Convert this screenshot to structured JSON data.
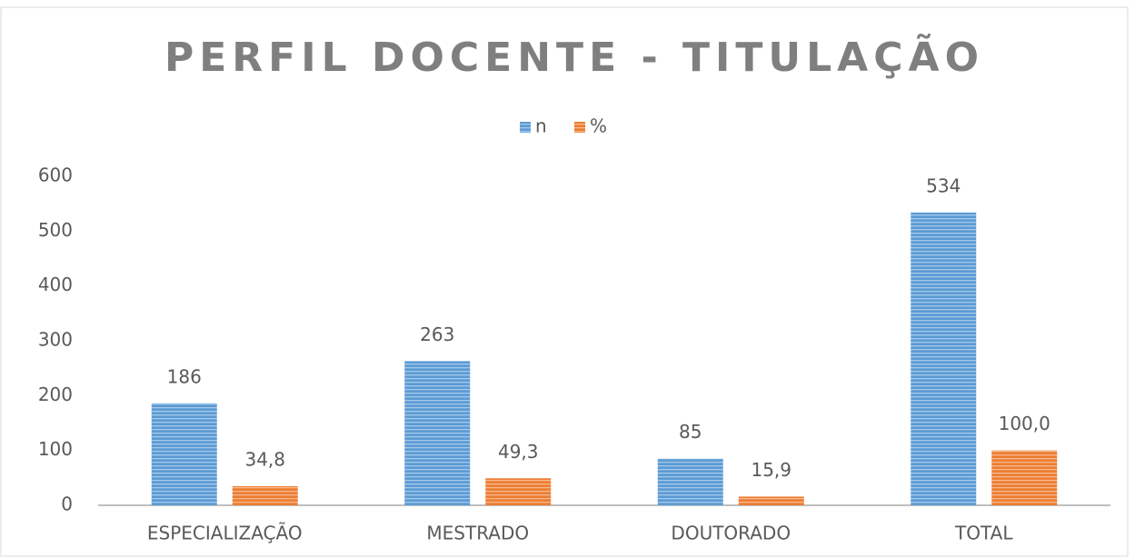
{
  "chart_data": {
    "type": "bar",
    "title": "PERFIL DOCENTE - TITULAÇÃO",
    "categories": [
      "ESPECIALIZAÇÃO",
      "MESTRADO",
      "DOUTORADO",
      "TOTAL"
    ],
    "series": [
      {
        "name": "n",
        "color": "#5b9bd5",
        "values": [
          186,
          263,
          85,
          534
        ]
      },
      {
        "name": "%",
        "color": "#ed7d31",
        "values": [
          34.8,
          49.3,
          15.9,
          100.0
        ],
        "value_labels": [
          "34,8",
          "49,3",
          "15,9",
          "100,0"
        ]
      }
    ],
    "ylim": [
      0,
      600
    ],
    "yticks": [
      0,
      100,
      200,
      300,
      400,
      500,
      600
    ],
    "grid": false,
    "legend": "top"
  }
}
